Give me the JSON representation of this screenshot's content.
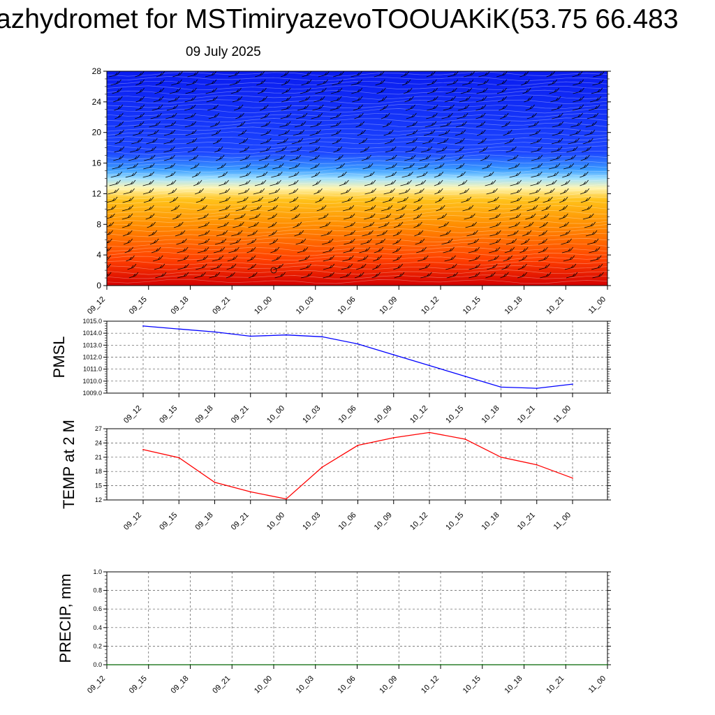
{
  "header": {
    "title": "azhydromet for MSTimiryazevoTOOUAKiK(53.75 66.483",
    "date": "09 July 2025"
  },
  "colors": {
    "pmsl_line": "#0000ff",
    "temp_line": "#ff0000",
    "precip_line": "#006400",
    "grid": "#555555"
  },
  "chart_data": [
    {
      "id": "vertical-profile",
      "type": "heatmap",
      "x": [
        "09_12",
        "09_15",
        "09_18",
        "09_21",
        "10_00",
        "10_03",
        "10_06",
        "10_09",
        "10_12",
        "10_15",
        "10_18",
        "10_21",
        "11_00"
      ],
      "y_ticks": [
        0,
        4,
        8,
        12,
        16,
        20,
        24,
        28
      ],
      "ylim": [
        0,
        28
      ],
      "colormap": [
        "#d40000",
        "#ff4000",
        "#ff8c00",
        "#ffc21a",
        "#fff5b0",
        "#9fe0ff",
        "#3b9dff",
        "#1c46ff",
        "#0a1cf0"
      ],
      "wind_barbs": true
    },
    {
      "id": "pmsl",
      "type": "line",
      "ylabel": "PMSL",
      "x": [
        "09_12",
        "09_15",
        "09_18",
        "09_21",
        "10_00",
        "10_03",
        "10_06",
        "10_09",
        "10_12",
        "10_15",
        "10_18",
        "10_21",
        "11_00"
      ],
      "values": [
        1014.6,
        1014.35,
        1014.1,
        1013.75,
        1013.85,
        1013.7,
        1013.1,
        1012.2,
        1011.3,
        1010.4,
        1009.5,
        1009.4,
        1009.75
      ],
      "y_ticks": [
        "1009.0",
        "1010.0",
        "1011.0",
        "1012.0",
        "1013.0",
        "1014.0",
        "1015.0"
      ],
      "ylim": [
        1009.0,
        1015.0
      ],
      "grid": true
    },
    {
      "id": "temp",
      "type": "line",
      "ylabel": "TEMP at 2 M",
      "x": [
        "09_12",
        "09_15",
        "09_18",
        "09_21",
        "10_00",
        "10_03",
        "10_06",
        "10_09",
        "10_12",
        "10_15",
        "10_18",
        "10_21",
        "11_00"
      ],
      "values": [
        22.6,
        20.9,
        15.7,
        13.7,
        12.2,
        18.9,
        23.5,
        25.1,
        26.2,
        24.8,
        21.0,
        19.4,
        16.6
      ],
      "y_ticks": [
        "12",
        "15",
        "18",
        "21",
        "24",
        "27"
      ],
      "ylim": [
        12,
        27
      ],
      "grid": true
    },
    {
      "id": "precip",
      "type": "line",
      "ylabel": "PRECIP, mm",
      "x": [
        "09_12",
        "09_15",
        "09_18",
        "09_21",
        "10_00",
        "10_03",
        "10_06",
        "10_09",
        "10_12",
        "10_15",
        "10_18",
        "10_21",
        "11_00"
      ],
      "values": [
        0,
        0,
        0,
        0,
        0,
        0,
        0,
        0,
        0,
        0,
        0,
        0,
        0
      ],
      "y_ticks": [
        "0.0",
        "0.2",
        "0.4",
        "0.6",
        "0.8",
        "1.0"
      ],
      "ylim": [
        0,
        1.0
      ],
      "grid": true
    }
  ]
}
